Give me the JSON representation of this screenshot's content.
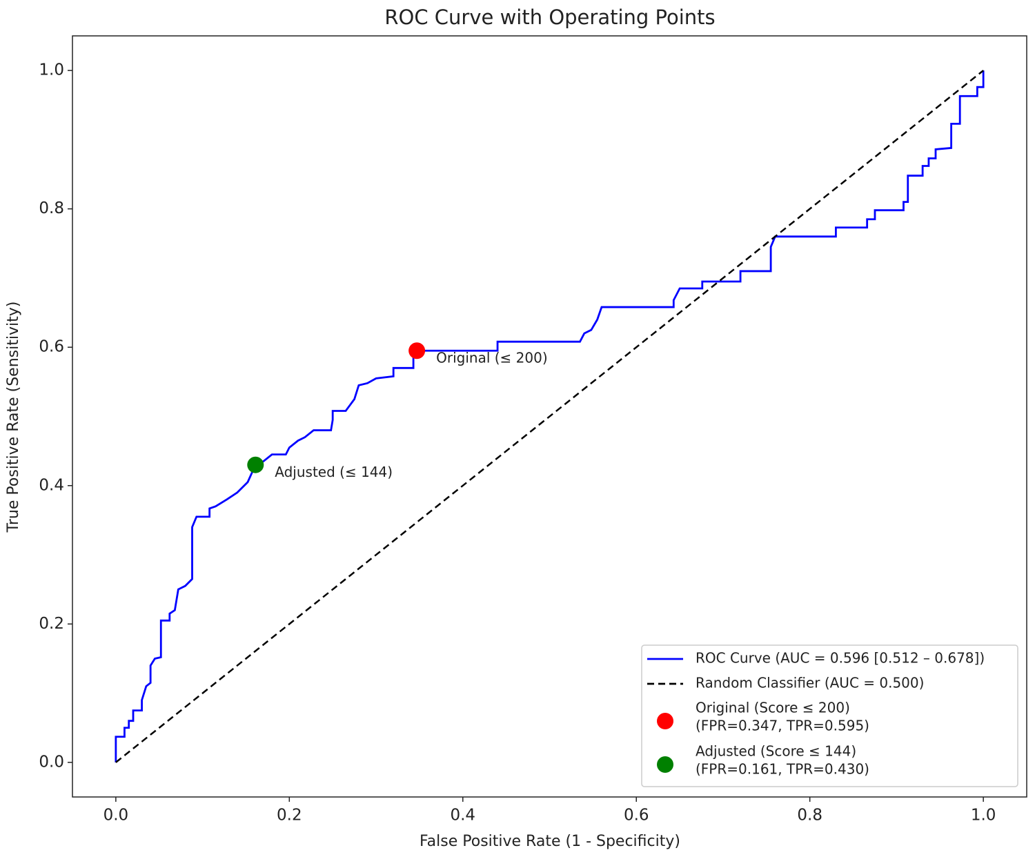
{
  "chart_data": {
    "type": "line",
    "title": "ROC Curve with Operating Points",
    "xlabel": "False Positive Rate (1 - Specificity)",
    "ylabel": "True Positive Rate (Sensitivity)",
    "xlim": [
      -0.05,
      1.05
    ],
    "ylim": [
      -0.05,
      1.05
    ],
    "xticks": [
      {
        "value": 0,
        "label": "0.0"
      },
      0.2,
      0.4,
      0.6,
      0.8,
      {
        "value": 1,
        "label": "1.0"
      }
    ],
    "yticks": [
      {
        "value": 0,
        "label": "0.0"
      },
      0.2,
      0.4,
      0.6,
      0.8,
      {
        "value": 1,
        "label": "1.0"
      }
    ],
    "legend": "lower right",
    "series": [
      {
        "name": "ROC Curve (AUC = 0.596 [0.512 – 0.678])",
        "color": "#0000ff",
        "style": "solid",
        "x": [
          0,
          0,
          0.01,
          0.01,
          0.015,
          0.015,
          0.02,
          0.02,
          0.03,
          0.03,
          0.035,
          0.04,
          0.04,
          0.045,
          0.052,
          0.052,
          0.062,
          0.062,
          0.068,
          0.072,
          0.08,
          0.088,
          0.088,
          0.093,
          0.108,
          0.108,
          0.115,
          0.128,
          0.14,
          0.152,
          0.161,
          0.17,
          0.18,
          0.196,
          0.2,
          0.21,
          0.218,
          0.228,
          0.248,
          0.25,
          0.25,
          0.265,
          0.275,
          0.28,
          0.29,
          0.3,
          0.32,
          0.32,
          0.343,
          0.343,
          0.44,
          0.44,
          0.535,
          0.54,
          0.548,
          0.555,
          0.56,
          0.643,
          0.643,
          0.65,
          0.676,
          0.676,
          0.72,
          0.72,
          0.755,
          0.755,
          0.76,
          0.83,
          0.83,
          0.866,
          0.866,
          0.875,
          0.875,
          0.908,
          0.908,
          0.913,
          0.913,
          0.93,
          0.93,
          0.937,
          0.937,
          0.945,
          0.945,
          0.963,
          0.963,
          0.973,
          0.973,
          0.993,
          0.993,
          1,
          1
        ],
        "values": [
          0,
          0.037,
          0.037,
          0.05,
          0.05,
          0.06,
          0.06,
          0.075,
          0.075,
          0.09,
          0.11,
          0.115,
          0.14,
          0.15,
          0.152,
          0.205,
          0.205,
          0.215,
          0.22,
          0.25,
          0.255,
          0.265,
          0.34,
          0.355,
          0.355,
          0.367,
          0.37,
          0.38,
          0.39,
          0.405,
          0.43,
          0.435,
          0.445,
          0.445,
          0.455,
          0.465,
          0.47,
          0.48,
          0.48,
          0.495,
          0.508,
          0.508,
          0.525,
          0.545,
          0.548,
          0.555,
          0.558,
          0.57,
          0.57,
          0.595,
          0.595,
          0.608,
          0.608,
          0.62,
          0.625,
          0.64,
          0.658,
          0.658,
          0.668,
          0.685,
          0.685,
          0.695,
          0.695,
          0.71,
          0.71,
          0.745,
          0.76,
          0.76,
          0.773,
          0.773,
          0.785,
          0.785,
          0.798,
          0.798,
          0.81,
          0.81,
          0.848,
          0.848,
          0.862,
          0.862,
          0.873,
          0.873,
          0.886,
          0.888,
          0.923,
          0.923,
          0.963,
          0.963,
          0.976,
          0.976,
          1
        ]
      },
      {
        "name": "Random Classifier (AUC = 0.500)",
        "color": "#000000",
        "style": "dashed",
        "x": [
          0,
          1
        ],
        "values": [
          0,
          1
        ]
      }
    ],
    "points": [
      {
        "name": "Original (Score ≤ 200)",
        "detail": "(FPR=0.347, TPR=0.595)",
        "annotation": "Original (≤ 200)",
        "color": "#ff0000",
        "x": 0.347,
        "y": 0.595
      },
      {
        "name": "Adjusted (Score ≤ 144)",
        "detail": "(FPR=0.161, TPR=0.430)",
        "annotation": "Adjusted (≤ 144)",
        "color": "#008000",
        "x": 0.161,
        "y": 0.43
      }
    ]
  }
}
